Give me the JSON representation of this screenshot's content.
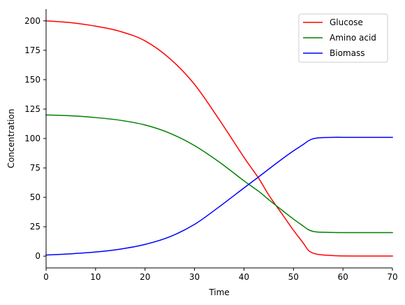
{
  "chart_data": {
    "type": "line",
    "title": "",
    "xlabel": "Time",
    "ylabel": "Concentration",
    "xlim": [
      0,
      70
    ],
    "ylim": [
      -10,
      210
    ],
    "xticks": [
      0,
      10,
      20,
      30,
      40,
      50,
      60,
      70
    ],
    "yticks": [
      0,
      25,
      50,
      75,
      100,
      125,
      150,
      175,
      200
    ],
    "grid": false,
    "legend": "top-right",
    "spines": "left-bottom",
    "series": [
      {
        "name": "Glucose",
        "color": "#ff0000",
        "x": [
          0,
          5,
          10,
          15,
          20,
          25,
          30,
          35,
          40,
          43,
          45,
          48,
          50,
          52,
          53,
          54,
          55,
          56,
          58,
          60,
          65,
          70
        ],
        "y": [
          200,
          198.5,
          195.5,
          191,
          183,
          168,
          146,
          116,
          84,
          66,
          52,
          34,
          22,
          11,
          5,
          2.5,
          1.5,
          1,
          0.5,
          0.2,
          0.1,
          0.1
        ]
      },
      {
        "name": "Amino acid",
        "color": "#008000",
        "x": [
          0,
          5,
          10,
          15,
          20,
          25,
          30,
          35,
          40,
          43,
          45,
          48,
          50,
          52,
          53,
          54,
          55,
          56,
          58,
          60,
          65,
          70
        ],
        "y": [
          120,
          119.3,
          117.8,
          115.5,
          111.5,
          104.5,
          94,
          80,
          64,
          55,
          48,
          38,
          31.5,
          25.5,
          22.5,
          21,
          20.5,
          20.3,
          20.1,
          20,
          20,
          20
        ]
      },
      {
        "name": "Biomass",
        "color": "#0000ff",
        "x": [
          0,
          5,
          10,
          15,
          20,
          25,
          30,
          35,
          40,
          43,
          45,
          48,
          50,
          52,
          53,
          54,
          55,
          56,
          58,
          60,
          65,
          70
        ],
        "y": [
          1,
          2,
          3.5,
          6,
          10,
          16.5,
          27,
          42,
          58,
          67.5,
          74,
          83.5,
          89.5,
          95,
          98,
          99.8,
          100.5,
          100.8,
          101,
          101,
          101,
          101
        ]
      }
    ]
  }
}
